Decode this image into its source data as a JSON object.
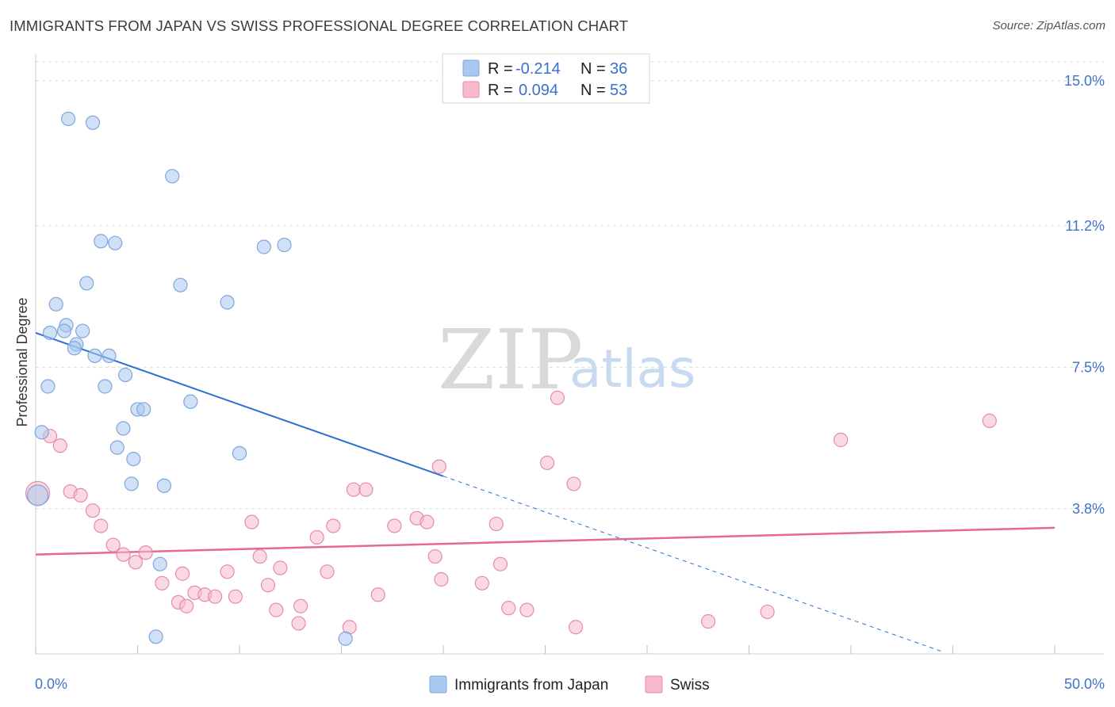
{
  "title": "IMMIGRANTS FROM JAPAN VS SWISS PROFESSIONAL DEGREE CORRELATION CHART",
  "source": "Source: ZipAtlas.com",
  "watermark": {
    "zip": "ZIP",
    "atlas": "atlas"
  },
  "legend_box": {
    "r_label": "R =",
    "n_label": "N =",
    "rows": [
      {
        "series": "Immigrants from Japan",
        "r": "-0.214",
        "n": "36"
      },
      {
        "series": "Swiss",
        "r": "0.094",
        "n": "53"
      }
    ]
  },
  "colors": {
    "japan_fill": "#a9c8f0",
    "japan_stroke": "#7fa6dc",
    "japan_line": "#2b6fd6",
    "swiss_fill": "#f8b9cc",
    "swiss_stroke": "#e88aa6",
    "swiss_line": "#e56a92",
    "grid": "#dcdcdc",
    "tick_text": "#3f74c8"
  },
  "chart_data": {
    "type": "scatter",
    "title": "IMMIGRANTS FROM JAPAN VS SWISS PROFESSIONAL DEGREE CORRELATION CHART",
    "xlabel": "",
    "ylabel": "Professional Degree",
    "xlim": [
      0,
      50
    ],
    "ylim": [
      0,
      15.7
    ],
    "x_tick_labels": [
      {
        "value": 0,
        "label": "0.0%"
      },
      {
        "value": 50,
        "label": "50.0%"
      }
    ],
    "x_minor_ticks": [
      0,
      5,
      10,
      15,
      20,
      25,
      30,
      35,
      40,
      45,
      50
    ],
    "y_ticks": [
      {
        "value": 3.8,
        "label": "3.8%"
      },
      {
        "value": 7.5,
        "label": "7.5%"
      },
      {
        "value": 11.2,
        "label": "11.2%"
      },
      {
        "value": 15.0,
        "label": "15.0%"
      }
    ],
    "grid": true,
    "legend_position": "top-center",
    "series": [
      {
        "name": "Immigrants from Japan",
        "r": -0.214,
        "n": 36,
        "trend": {
          "x1": 0,
          "y1": 8.4,
          "x2": 20,
          "y2": 4.65,
          "extend_to_x": 44.5,
          "dashed_extension": true
        },
        "points": [
          [
            1.6,
            14.0
          ],
          [
            2.8,
            13.9
          ],
          [
            6.7,
            12.5
          ],
          [
            3.2,
            10.8
          ],
          [
            3.9,
            10.75
          ],
          [
            11.2,
            10.65
          ],
          [
            12.2,
            10.7
          ],
          [
            2.5,
            9.7
          ],
          [
            7.1,
            9.65
          ],
          [
            9.4,
            9.2
          ],
          [
            1.0,
            9.15
          ],
          [
            1.5,
            8.6
          ],
          [
            1.4,
            8.45
          ],
          [
            0.7,
            8.4
          ],
          [
            2.3,
            8.45
          ],
          [
            2.0,
            8.1
          ],
          [
            1.9,
            8.0
          ],
          [
            2.9,
            7.8
          ],
          [
            3.6,
            7.8
          ],
          [
            4.4,
            7.3
          ],
          [
            0.6,
            7.0
          ],
          [
            3.4,
            7.0
          ],
          [
            7.6,
            6.6
          ],
          [
            5.0,
            6.4
          ],
          [
            5.3,
            6.4
          ],
          [
            4.3,
            5.9
          ],
          [
            0.3,
            5.8
          ],
          [
            4.0,
            5.4
          ],
          [
            4.8,
            5.1
          ],
          [
            10.0,
            5.25
          ],
          [
            4.7,
            4.45
          ],
          [
            6.3,
            4.4
          ],
          [
            0.1,
            4.15
          ],
          [
            6.1,
            2.35
          ],
          [
            5.9,
            0.45
          ],
          [
            15.2,
            0.4
          ]
        ]
      },
      {
        "name": "Swiss",
        "r": 0.094,
        "n": 53,
        "trend": {
          "x1": 0,
          "y1": 2.6,
          "x2": 50,
          "y2": 3.3
        },
        "points": [
          [
            0.1,
            4.2
          ],
          [
            0.7,
            5.7
          ],
          [
            1.2,
            5.45
          ],
          [
            25.6,
            6.7
          ],
          [
            46.8,
            6.1
          ],
          [
            39.5,
            5.6
          ],
          [
            19.8,
            4.9
          ],
          [
            25.1,
            5.0
          ],
          [
            26.4,
            4.45
          ],
          [
            15.6,
            4.3
          ],
          [
            16.2,
            4.3
          ],
          [
            1.7,
            4.25
          ],
          [
            2.2,
            4.15
          ],
          [
            2.8,
            3.75
          ],
          [
            3.2,
            3.35
          ],
          [
            10.6,
            3.45
          ],
          [
            14.6,
            3.35
          ],
          [
            17.6,
            3.35
          ],
          [
            18.7,
            3.55
          ],
          [
            19.2,
            3.45
          ],
          [
            22.6,
            3.4
          ],
          [
            13.8,
            3.05
          ],
          [
            3.8,
            2.85
          ],
          [
            4.3,
            2.6
          ],
          [
            4.9,
            2.4
          ],
          [
            5.4,
            2.65
          ],
          [
            11.0,
            2.55
          ],
          [
            19.6,
            2.55
          ],
          [
            12.0,
            2.25
          ],
          [
            14.3,
            2.15
          ],
          [
            9.4,
            2.15
          ],
          [
            7.2,
            2.1
          ],
          [
            22.8,
            2.35
          ],
          [
            6.2,
            1.85
          ],
          [
            11.4,
            1.8
          ],
          [
            19.9,
            1.95
          ],
          [
            21.9,
            1.85
          ],
          [
            7.8,
            1.6
          ],
          [
            8.3,
            1.55
          ],
          [
            8.8,
            1.5
          ],
          [
            9.8,
            1.5
          ],
          [
            16.8,
            1.55
          ],
          [
            7.0,
            1.35
          ],
          [
            7.4,
            1.25
          ],
          [
            13.0,
            1.25
          ],
          [
            11.8,
            1.15
          ],
          [
            23.2,
            1.2
          ],
          [
            24.1,
            1.15
          ],
          [
            35.9,
            1.1
          ],
          [
            33.0,
            0.85
          ],
          [
            12.9,
            0.8
          ],
          [
            15.4,
            0.7
          ],
          [
            26.5,
            0.7
          ]
        ]
      }
    ]
  }
}
